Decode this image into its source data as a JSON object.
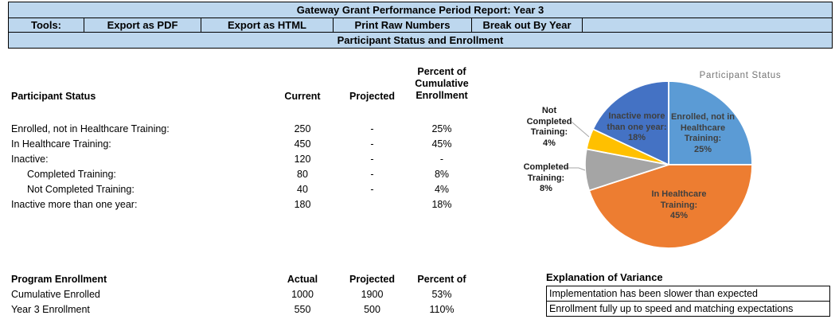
{
  "colors": {
    "header_fill": "#BDD7EE",
    "border": "#000000"
  },
  "header": {
    "title": "Gateway Grant Performance Period Report: Year 3",
    "tools_label": "Tools:",
    "tools": [
      "Export as PDF",
      "Export as HTML",
      "Print Raw Numbers",
      "Break out By Year"
    ],
    "section_title": "Participant Status and Enrollment"
  },
  "participant_status_table": {
    "col0_header": "Participant Status",
    "col_headers": [
      "Current",
      "Projected",
      "Percent of\nCumulative\nEnrollment"
    ],
    "rows": [
      {
        "label": "Enrolled, not in Healthcare Training:",
        "current": "250",
        "projected": "-",
        "percent": "25%"
      },
      {
        "label": "In Healthcare Training:",
        "current": "450",
        "projected": "-",
        "percent": "45%"
      },
      {
        "label": "Inactive:",
        "current": "120",
        "projected": "-",
        "percent": "-"
      },
      {
        "label": "Completed Training:",
        "current": "80",
        "projected": "-",
        "percent": "8%"
      },
      {
        "label": "Not Completed Training:",
        "current": "40",
        "projected": "-",
        "percent": "4%"
      },
      {
        "label": "Inactive more than one year:",
        "current": "180",
        "projected": "",
        "percent": "18%"
      }
    ]
  },
  "chart_data": {
    "type": "pie",
    "title": "Participant  Status",
    "start_angle_deg": 0,
    "direction": "clockwise",
    "slices": [
      {
        "label": "Enrolled, not in Healthcare Training",
        "value": 25,
        "color": "#5B9BD5",
        "label_pos": "inside",
        "label_lines": "Enrolled, not in\nHealthcare\nTraining:\n25%"
      },
      {
        "label": "In Healthcare Training",
        "value": 45,
        "color": "#ED7D31",
        "label_pos": "inside",
        "label_lines": "In Healthcare\nTraining:\n45%"
      },
      {
        "label": "Completed Training",
        "value": 8,
        "color": "#A5A5A5",
        "label_pos": "outside",
        "label_lines": "Completed\nTraining:\n8%"
      },
      {
        "label": "Not Completed Training",
        "value": 4,
        "color": "#FFC000",
        "label_pos": "outside",
        "label_lines": "Not\nCompleted\nTraining:\n4%"
      },
      {
        "label": "Inactive more than one year",
        "value": 18,
        "color": "#4472C4",
        "label_pos": "inside",
        "label_lines": "Inactive more\nthan one year:\n18%"
      }
    ]
  },
  "program_enrollment_table": {
    "col0_header": "Program Enrollment",
    "col_headers": [
      "Actual",
      "Projected",
      "Percent of"
    ],
    "rows": [
      {
        "label": "Cumulative Enrolled",
        "actual": "1000",
        "projected": "1900",
        "percent": "53%"
      },
      {
        "label": "Year 3 Enrollment",
        "actual": "550",
        "projected": "500",
        "percent": "110%"
      }
    ]
  },
  "variance": {
    "header": "Explanation of Variance",
    "notes": [
      "Implementation has been slower than expected",
      "Enrollment fully up to speed and matching expectations"
    ]
  }
}
